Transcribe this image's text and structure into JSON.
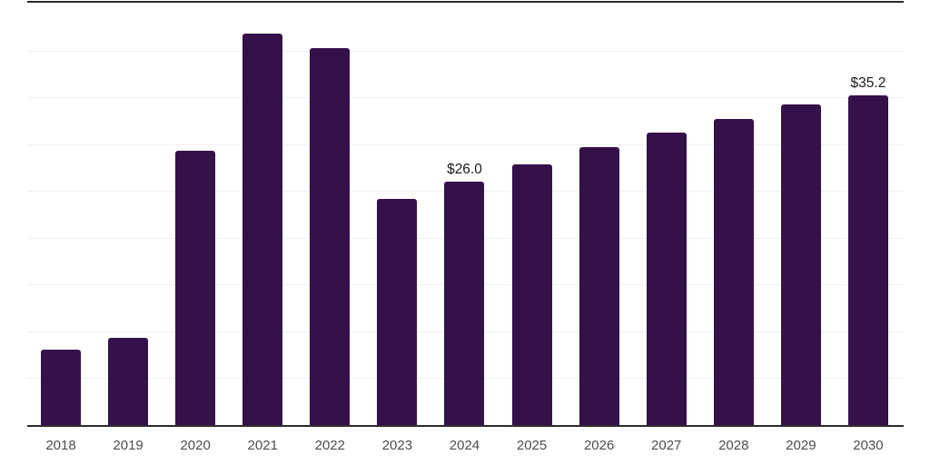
{
  "chart_data": {
    "type": "bar",
    "title": "",
    "xlabel": "",
    "ylabel": "",
    "categories": [
      "2018",
      "2019",
      "2020",
      "2021",
      "2022",
      "2023",
      "2024",
      "2025",
      "2026",
      "2027",
      "2028",
      "2029",
      "2030"
    ],
    "values": [
      8.1,
      9.3,
      29.3,
      41.8,
      40.3,
      24.2,
      26.0,
      27.8,
      29.7,
      31.2,
      32.7,
      34.2,
      35.2
    ],
    "bar_labels": [
      "",
      "",
      "",
      "",
      "",
      "",
      "$26.0",
      "",
      "",
      "",
      "",
      "",
      "$35.2"
    ],
    "value_prefix": "$",
    "ylim": [
      0,
      45.4
    ],
    "gridline_values": [
      5,
      10,
      15,
      20,
      25,
      30,
      35,
      40
    ],
    "grid": "horizontal",
    "legend": "none"
  },
  "style": {
    "background": "#ffffff",
    "bar_color": "#35114a",
    "axis_color": "#2b2b2b",
    "grid_color": "#f0f0f0",
    "tick_label_color": "#4d4d4d",
    "data_label_color": "#1a1a1a"
  }
}
